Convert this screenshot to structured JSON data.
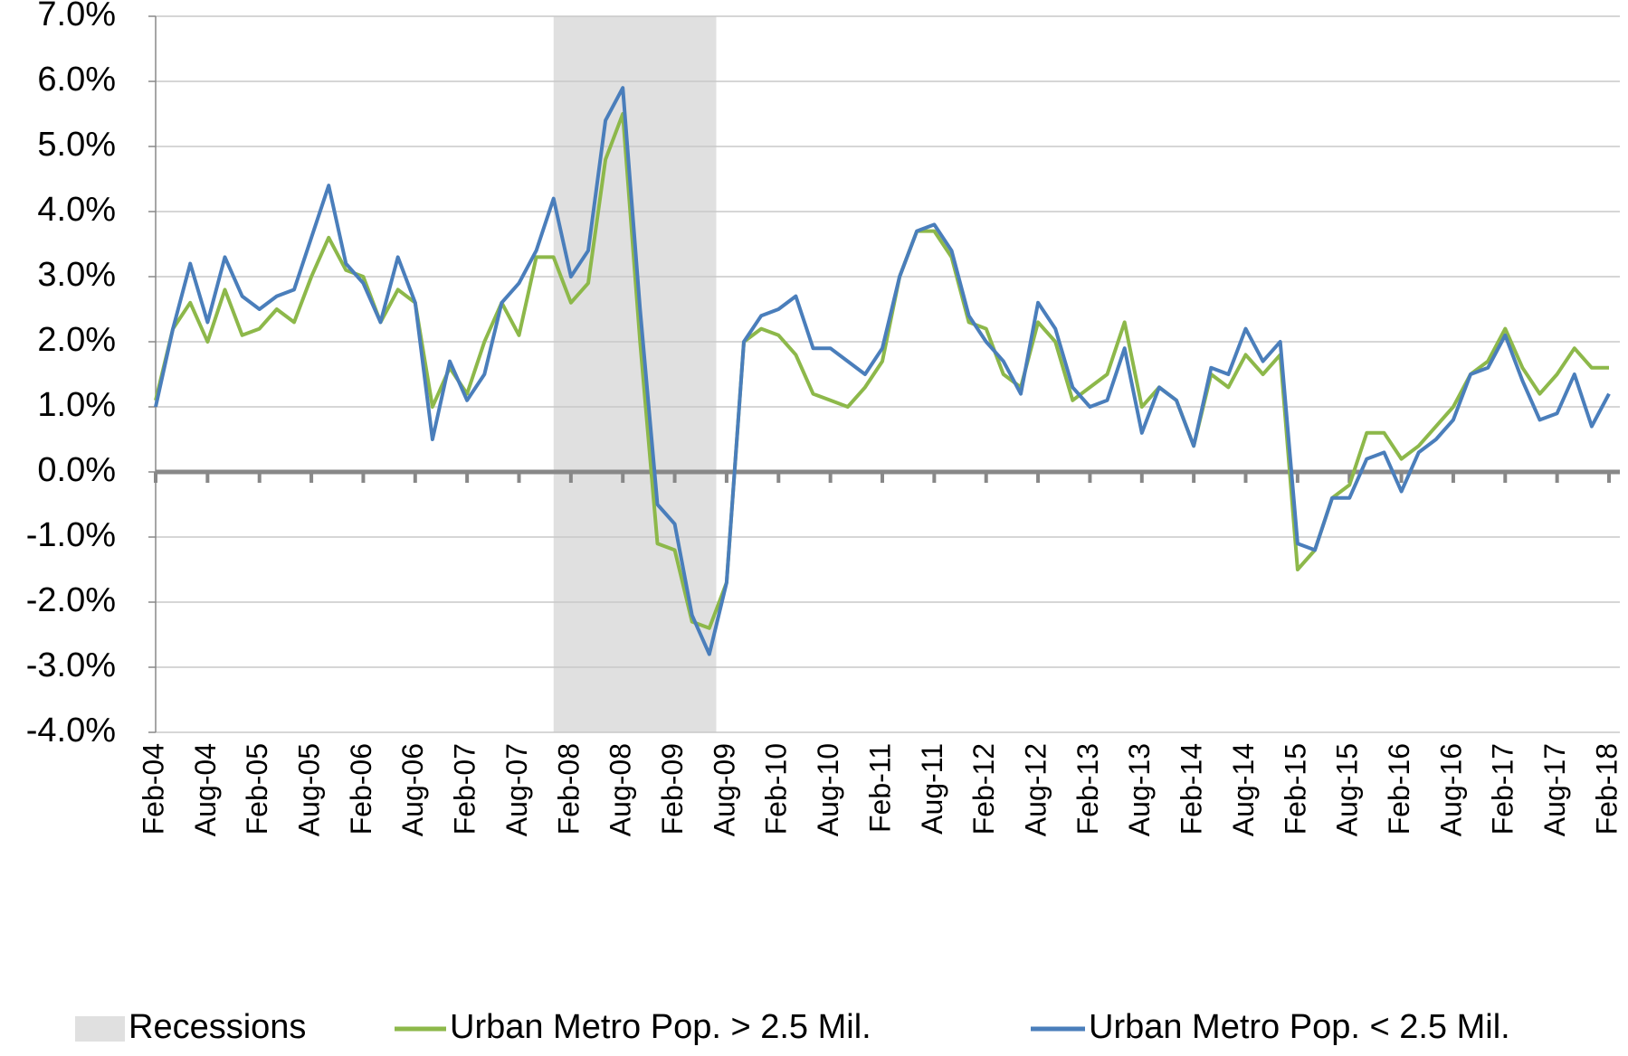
{
  "chart_data": {
    "type": "line",
    "categories": [
      "Feb-04",
      null,
      null,
      "Aug-04",
      null,
      null,
      "Feb-05",
      null,
      null,
      "Aug-05",
      null,
      null,
      "Feb-06",
      null,
      null,
      "Aug-06",
      null,
      null,
      "Feb-07",
      null,
      null,
      "Aug-07",
      null,
      null,
      "Feb-08",
      null,
      null,
      "Aug-08",
      null,
      null,
      "Feb-09",
      null,
      null,
      "Aug-09",
      null,
      null,
      "Feb-10",
      null,
      null,
      "Aug-10",
      null,
      null,
      "Feb-11",
      null,
      null,
      "Aug-11",
      null,
      null,
      "Feb-12",
      null,
      null,
      "Aug-12",
      null,
      null,
      "Feb-13",
      null,
      null,
      "Aug-13",
      null,
      null,
      "Feb-14",
      null,
      null,
      "Aug-14",
      null,
      null,
      "Feb-15",
      null,
      null,
      "Aug-15",
      null,
      null,
      "Feb-16",
      null,
      null,
      "Aug-16",
      null,
      null,
      "Feb-17",
      null,
      null,
      "Aug-17",
      null,
      null,
      "Feb-18"
    ],
    "series": [
      {
        "name": "Urban Metro Pop. > 2.5 Mil.",
        "color": "#8db84a",
        "values": [
          1.1,
          2.2,
          2.6,
          2.0,
          2.8,
          2.1,
          2.2,
          2.5,
          2.3,
          3.0,
          3.6,
          3.1,
          3.0,
          2.3,
          2.8,
          2.6,
          1.0,
          1.6,
          1.2,
          2.0,
          2.6,
          2.1,
          3.3,
          3.3,
          2.6,
          2.9,
          4.8,
          5.5,
          2.0,
          -1.1,
          -1.2,
          -2.3,
          -2.4,
          -1.7,
          2.0,
          2.2,
          2.1,
          1.8,
          1.2,
          1.1,
          1.0,
          1.3,
          1.7,
          3.0,
          3.7,
          3.7,
          3.3,
          2.3,
          2.2,
          1.5,
          1.3,
          2.3,
          2.0,
          1.1,
          1.3,
          1.5,
          2.3,
          1.0,
          1.3,
          1.1,
          0.4,
          1.5,
          1.3,
          1.8,
          1.5,
          1.8,
          -1.5,
          -1.2,
          -0.4,
          -0.2,
          0.6,
          0.6,
          0.2,
          0.4,
          0.7,
          1.0,
          1.5,
          1.7,
          2.2,
          1.6,
          1.2,
          1.5,
          1.9,
          1.6,
          1.6
        ]
      },
      {
        "name": "Urban Metro Pop. < 2.5 Mil.",
        "color": "#4a7ebb",
        "values": [
          1.0,
          2.2,
          3.2,
          2.3,
          3.3,
          2.7,
          2.5,
          2.7,
          2.8,
          3.6,
          4.4,
          3.2,
          2.9,
          2.3,
          3.3,
          2.6,
          0.5,
          1.7,
          1.1,
          1.5,
          2.6,
          2.9,
          3.4,
          4.2,
          3.0,
          3.4,
          5.4,
          5.9,
          2.5,
          -0.5,
          -0.8,
          -2.2,
          -2.8,
          -1.7,
          2.0,
          2.4,
          2.5,
          2.7,
          1.9,
          1.9,
          1.7,
          1.5,
          1.9,
          3.0,
          3.7,
          3.8,
          3.4,
          2.4,
          2.0,
          1.7,
          1.2,
          2.6,
          2.2,
          1.3,
          1.0,
          1.1,
          1.9,
          0.6,
          1.3,
          1.1,
          0.4,
          1.6,
          1.5,
          2.2,
          1.7,
          2.0,
          -1.1,
          -1.2,
          -0.4,
          -0.4,
          0.2,
          0.3,
          -0.3,
          0.3,
          0.5,
          0.8,
          1.5,
          1.6,
          2.1,
          1.4,
          0.8,
          0.9,
          1.5,
          0.7,
          1.2
        ]
      }
    ],
    "recession": {
      "name": "Recessions",
      "color": "#e0e0e0",
      "from": 23,
      "to": 32.4
    },
    "ylim": [
      -4,
      7
    ],
    "yticks": [
      {
        "value": -4,
        "label": "-4.0%"
      },
      {
        "value": -3,
        "label": "-3.0%"
      },
      {
        "value": -2,
        "label": "-2.0%"
      },
      {
        "value": -1,
        "label": "-1.0%"
      },
      {
        "value": 0,
        "label": "0.0%"
      },
      {
        "value": 1,
        "label": "1.0%"
      },
      {
        "value": 2,
        "label": "2.0%"
      },
      {
        "value": 3,
        "label": "3.0%"
      },
      {
        "value": 4,
        "label": "4.0%"
      },
      {
        "value": 5,
        "label": "5.0%"
      },
      {
        "value": 6,
        "label": "6.0%"
      },
      {
        "value": 7,
        "label": "7.0%"
      }
    ],
    "grid": true
  }
}
